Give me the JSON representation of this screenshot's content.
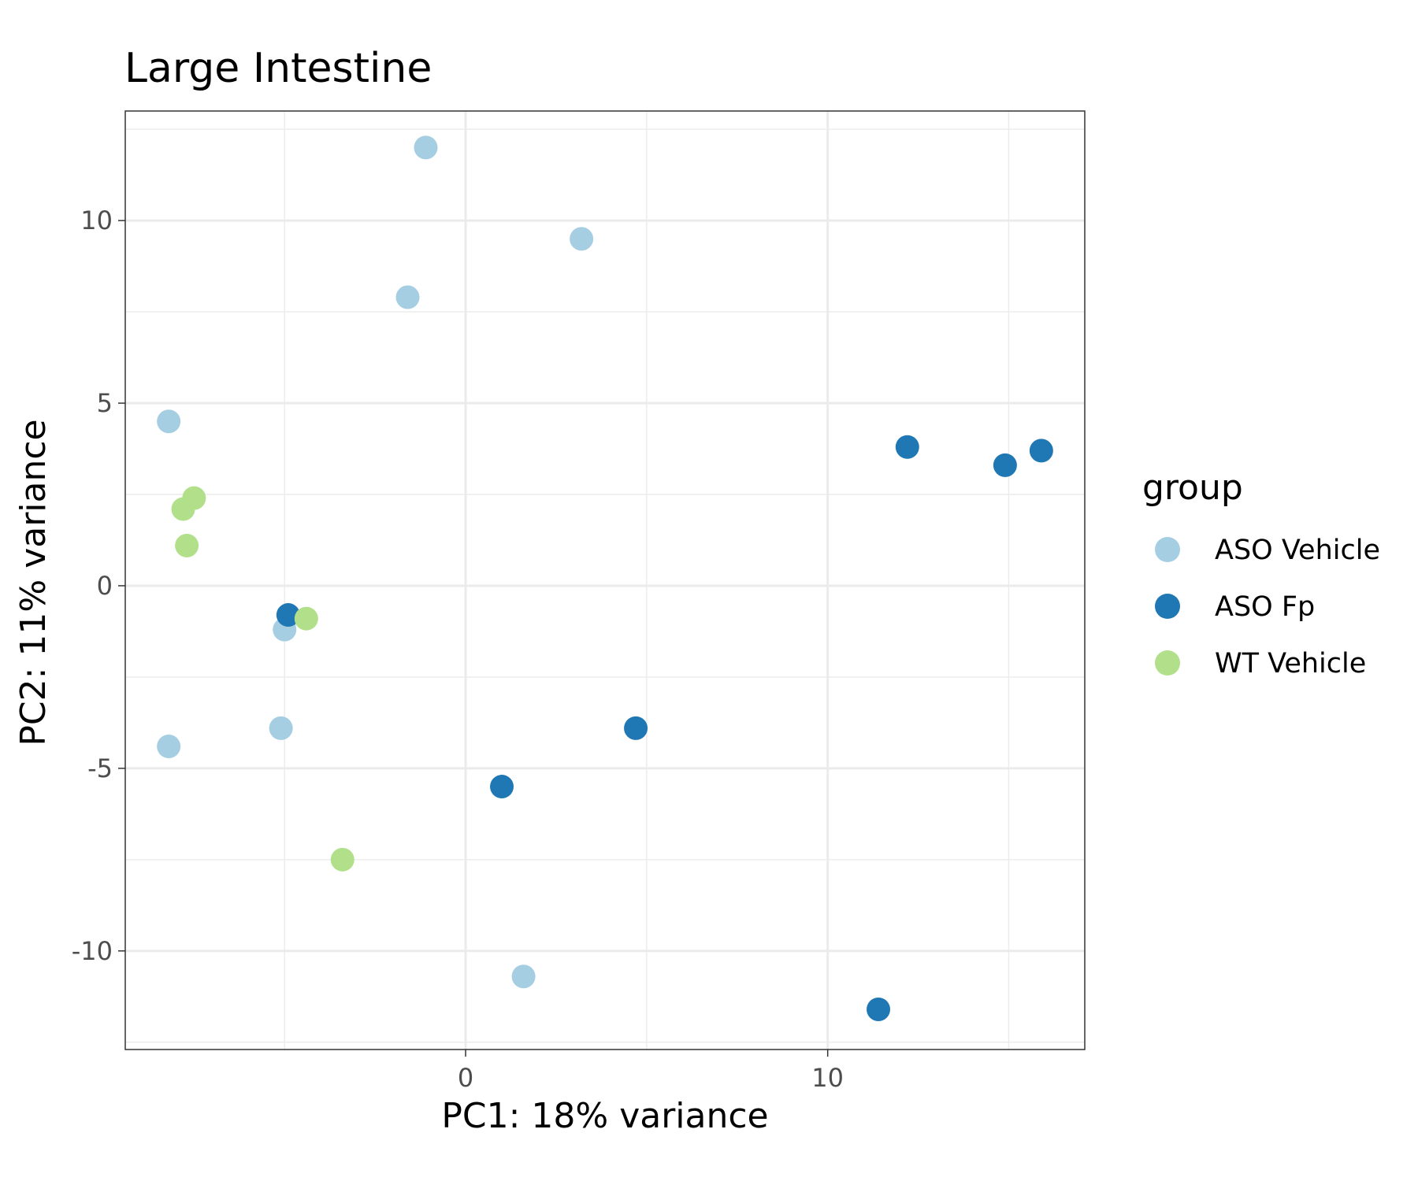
{
  "chart_data": {
    "type": "scatter",
    "title": "Large Intestine",
    "xlabel": "PC1: 18% variance",
    "ylabel": "PC2: 11% variance",
    "xlim": [
      -9.4,
      17.1
    ],
    "ylim": [
      -12.7,
      13.0
    ],
    "x_ticks": [
      0,
      10
    ],
    "x_tick_labels": [
      "0",
      "10"
    ],
    "y_ticks": [
      -10,
      -5,
      0,
      5,
      10
    ],
    "y_tick_labels": [
      "-10",
      "-5",
      "0",
      "5",
      "10"
    ],
    "grid": true,
    "legend": {
      "title": "group",
      "position": "right"
    },
    "series": [
      {
        "name": "ASO Vehicle",
        "color": "#a6cee3",
        "points": [
          {
            "x": -1.1,
            "y": 12.0
          },
          {
            "x": 3.2,
            "y": 9.5
          },
          {
            "x": -1.6,
            "y": 7.9
          },
          {
            "x": -8.2,
            "y": 4.5
          },
          {
            "x": -5.0,
            "y": -1.2
          },
          {
            "x": -5.1,
            "y": -3.9
          },
          {
            "x": -8.2,
            "y": -4.4
          },
          {
            "x": 1.6,
            "y": -10.7
          }
        ]
      },
      {
        "name": "ASO Fp",
        "color": "#1f78b4",
        "points": [
          {
            "x": 12.2,
            "y": 3.8
          },
          {
            "x": 14.9,
            "y": 3.3
          },
          {
            "x": 15.9,
            "y": 3.7
          },
          {
            "x": -4.9,
            "y": -0.8
          },
          {
            "x": 4.7,
            "y": -3.9
          },
          {
            "x": 1.0,
            "y": -5.5
          },
          {
            "x": 11.4,
            "y": -11.6
          }
        ]
      },
      {
        "name": "WT Vehicle",
        "color": "#b2df8a",
        "points": [
          {
            "x": -7.5,
            "y": 2.4
          },
          {
            "x": -7.8,
            "y": 2.1
          },
          {
            "x": -7.7,
            "y": 1.1
          },
          {
            "x": -4.4,
            "y": -0.9
          },
          {
            "x": -3.4,
            "y": -7.5
          }
        ]
      }
    ]
  }
}
